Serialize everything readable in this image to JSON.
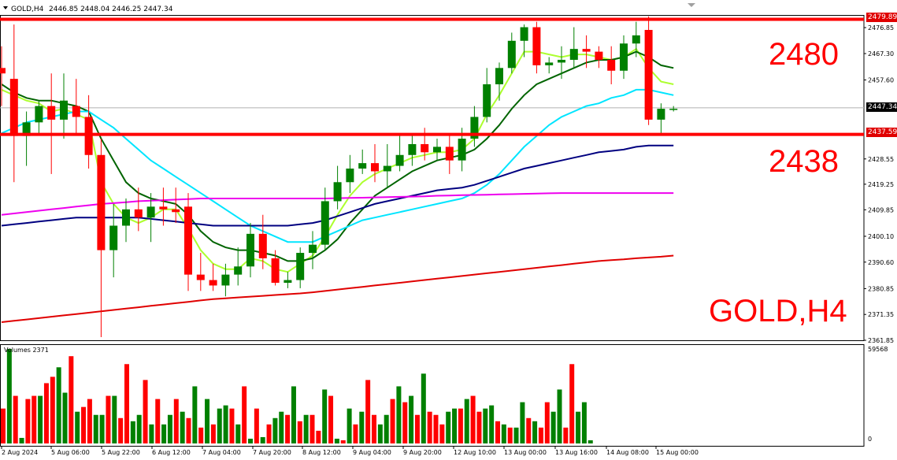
{
  "header": {
    "menu_arrow_icon": "triangle-down-icon",
    "symbol": "GOLD,H4",
    "ohlc": "2446.85 2448.04 2446.25 2447.34"
  },
  "volume_panel": {
    "label": "Volumes 2371",
    "max_label": "59568",
    "min_label": "0"
  },
  "annotations": {
    "level_high": "2480",
    "level_low": "2438",
    "symbol_tf": "GOLD,H4"
  },
  "price_tags": {
    "high": "2479.89",
    "current": "2447.34",
    "low": "2437.59"
  },
  "colors": {
    "bull": "#008000",
    "bear": "#ff0000",
    "ma_fast": "#adff2f",
    "ma_mid": "#006400",
    "ma_cyan": "#00e5ff",
    "ma_navy": "#000080",
    "ma_magenta": "#ee00ee",
    "ma_long": "#e00000",
    "level_line": "#ff0000"
  },
  "chart_data": {
    "type": "candlestick",
    "title": "GOLD,H4",
    "ylim": [
      2361.85,
      2481.5
    ],
    "y_ticks": [
      "2476.85",
      "2467.30",
      "2457.60",
      "2447.34",
      "2438.00",
      "2428.55",
      "2419.25",
      "2409.85",
      "2400.10",
      "2390.60",
      "2380.85",
      "2371.35",
      "2361.85"
    ],
    "x_tick_labels": [
      "2 Aug 2024",
      "5 Aug 06:00",
      "5 Aug 22:00",
      "6 Aug 12:00",
      "7 Aug 04:00",
      "7 Aug 20:00",
      "8 Aug 12:00",
      "9 Aug 04:00",
      "9 Aug 20:00",
      "12 Aug 10:00",
      "13 Aug 00:00",
      "13 Aug 16:00",
      "14 Aug 08:00",
      "15 Aug 00:00"
    ],
    "horizontal_levels": [
      2479.89,
      2437.59
    ],
    "current_price": 2447.34,
    "candles": [
      {
        "o": 2462,
        "h": 2470,
        "l": 2448,
        "c": 2460
      },
      {
        "o": 2458,
        "h": 2478,
        "l": 2420,
        "c": 2437
      },
      {
        "o": 2437,
        "h": 2446,
        "l": 2426,
        "c": 2442
      },
      {
        "o": 2442,
        "h": 2450,
        "l": 2438,
        "c": 2448
      },
      {
        "o": 2448,
        "h": 2460,
        "l": 2423,
        "c": 2443
      },
      {
        "o": 2443,
        "h": 2460,
        "l": 2436,
        "c": 2450
      },
      {
        "o": 2448,
        "h": 2458,
        "l": 2438,
        "c": 2444
      },
      {
        "o": 2444,
        "h": 2452,
        "l": 2425,
        "c": 2430
      },
      {
        "o": 2430,
        "h": 2436,
        "l": 2363,
        "c": 2395
      },
      {
        "o": 2395,
        "h": 2412,
        "l": 2385,
        "c": 2404
      },
      {
        "o": 2404,
        "h": 2414,
        "l": 2398,
        "c": 2410
      },
      {
        "o": 2410,
        "h": 2418,
        "l": 2402,
        "c": 2407
      },
      {
        "o": 2407,
        "h": 2416,
        "l": 2398,
        "c": 2411
      },
      {
        "o": 2411,
        "h": 2418,
        "l": 2404,
        "c": 2410
      },
      {
        "o": 2410,
        "h": 2418,
        "l": 2405,
        "c": 2409
      },
      {
        "o": 2411,
        "h": 2416,
        "l": 2380,
        "c": 2386
      },
      {
        "o": 2386,
        "h": 2394,
        "l": 2380,
        "c": 2384
      },
      {
        "o": 2384,
        "h": 2390,
        "l": 2380,
        "c": 2382
      },
      {
        "o": 2382,
        "h": 2390,
        "l": 2378,
        "c": 2386
      },
      {
        "o": 2386,
        "h": 2396,
        "l": 2382,
        "c": 2389
      },
      {
        "o": 2389,
        "h": 2405,
        "l": 2385,
        "c": 2401
      },
      {
        "o": 2401,
        "h": 2408,
        "l": 2388,
        "c": 2392
      },
      {
        "o": 2392,
        "h": 2395,
        "l": 2382,
        "c": 2383
      },
      {
        "o": 2383,
        "h": 2387,
        "l": 2381,
        "c": 2384
      },
      {
        "o": 2384,
        "h": 2396,
        "l": 2381,
        "c": 2394
      },
      {
        "o": 2394,
        "h": 2402,
        "l": 2388,
        "c": 2397
      },
      {
        "o": 2397,
        "h": 2418,
        "l": 2395,
        "c": 2413
      },
      {
        "o": 2413,
        "h": 2426,
        "l": 2410,
        "c": 2420
      },
      {
        "o": 2420,
        "h": 2430,
        "l": 2416,
        "c": 2425
      },
      {
        "o": 2425,
        "h": 2432,
        "l": 2423,
        "c": 2427
      },
      {
        "o": 2427,
        "h": 2434,
        "l": 2420,
        "c": 2424
      },
      {
        "o": 2424,
        "h": 2434,
        "l": 2418,
        "c": 2426
      },
      {
        "o": 2426,
        "h": 2438,
        "l": 2424,
        "c": 2430
      },
      {
        "o": 2430,
        "h": 2438,
        "l": 2426,
        "c": 2434
      },
      {
        "o": 2434,
        "h": 2440,
        "l": 2428,
        "c": 2431
      },
      {
        "o": 2431,
        "h": 2436,
        "l": 2428,
        "c": 2433
      },
      {
        "o": 2433,
        "h": 2438,
        "l": 2423,
        "c": 2428
      },
      {
        "o": 2428,
        "h": 2440,
        "l": 2424,
        "c": 2436
      },
      {
        "o": 2436,
        "h": 2448,
        "l": 2433,
        "c": 2444
      },
      {
        "o": 2444,
        "h": 2462,
        "l": 2442,
        "c": 2456
      },
      {
        "o": 2456,
        "h": 2464,
        "l": 2450,
        "c": 2462
      },
      {
        "o": 2462,
        "h": 2475,
        "l": 2460,
        "c": 2472
      },
      {
        "o": 2472,
        "h": 2478,
        "l": 2466,
        "c": 2477
      },
      {
        "o": 2477,
        "h": 2479,
        "l": 2460,
        "c": 2463
      },
      {
        "o": 2463,
        "h": 2466,
        "l": 2460,
        "c": 2464
      },
      {
        "o": 2464,
        "h": 2470,
        "l": 2458,
        "c": 2465
      },
      {
        "o": 2465,
        "h": 2477,
        "l": 2462,
        "c": 2469
      },
      {
        "o": 2469,
        "h": 2474,
        "l": 2462,
        "c": 2468
      },
      {
        "o": 2468,
        "h": 2470,
        "l": 2462,
        "c": 2465
      },
      {
        "o": 2465,
        "h": 2470,
        "l": 2456,
        "c": 2461
      },
      {
        "o": 2461,
        "h": 2474,
        "l": 2458,
        "c": 2471
      },
      {
        "o": 2471,
        "h": 2479,
        "l": 2466,
        "c": 2474
      },
      {
        "o": 2476,
        "h": 2481,
        "l": 2441,
        "c": 2443
      },
      {
        "o": 2443,
        "h": 2449,
        "l": 2438,
        "c": 2447
      },
      {
        "o": 2447,
        "h": 2448,
        "l": 2446,
        "c": 2447
      }
    ],
    "series": [
      {
        "name": "",
        "color_key": "ma_fast",
        "values": [
          2454,
          2452,
          2450,
          2449,
          2446,
          2447,
          2445,
          2443,
          2420,
          2412,
          2407,
          2405,
          2407,
          2410,
          2410,
          2403,
          2395,
          2390,
          2388,
          2388,
          2392,
          2391,
          2388,
          2387,
          2390,
          2393,
          2400,
          2408,
          2415,
          2420,
          2423,
          2425,
          2427,
          2429,
          2430,
          2431,
          2431,
          2432,
          2436,
          2445,
          2452,
          2460,
          2468,
          2468,
          2467,
          2466,
          2467,
          2467,
          2466,
          2465,
          2466,
          2469,
          2462,
          2457,
          2456
        ]
      },
      {
        "name": "",
        "color_key": "ma_mid",
        "values": [
          2456,
          2453,
          2451,
          2450,
          2450,
          2449,
          2448,
          2446,
          2436,
          2428,
          2420,
          2416,
          2414,
          2413,
          2412,
          2408,
          2402,
          2398,
          2396,
          2395,
          2395,
          2394,
          2393,
          2391,
          2391,
          2392,
          2395,
          2399,
          2405,
          2410,
          2415,
          2418,
          2421,
          2424,
          2426,
          2428,
          2429,
          2430,
          2432,
          2436,
          2441,
          2447,
          2452,
          2456,
          2458,
          2460,
          2462,
          2464,
          2465,
          2465,
          2466,
          2468,
          2466,
          2463,
          2462
        ]
      },
      {
        "name": "",
        "color_key": "ma_cyan",
        "values": [
          2438,
          2440,
          2442,
          2443,
          2444,
          2445,
          2446,
          2446,
          2443,
          2440,
          2436,
          2432,
          2428,
          2425,
          2422,
          2419,
          2416,
          2413,
          2410,
          2407,
          2404,
          2402,
          2400,
          2398,
          2398,
          2398,
          2400,
          2402,
          2404,
          2406,
          2407,
          2408,
          2409,
          2410,
          2411,
          2412,
          2413,
          2414,
          2416,
          2419,
          2423,
          2428,
          2433,
          2437,
          2441,
          2444,
          2446,
          2448,
          2449,
          2451,
          2452,
          2454,
          2454,
          2453,
          2452
        ]
      },
      {
        "name": "",
        "color_key": "ma_navy",
        "values": [
          2404,
          2404.5,
          2405,
          2405.5,
          2406,
          2406.5,
          2407,
          2407,
          2407,
          2407,
          2407,
          2407,
          2406.5,
          2406,
          2405.5,
          2405,
          2404.5,
          2404,
          2404,
          2404,
          2404,
          2404,
          2404,
          2404,
          2404.5,
          2405,
          2406,
          2407.5,
          2409,
          2410.5,
          2412,
          2413,
          2414,
          2415,
          2416,
          2417,
          2417.5,
          2418,
          2419,
          2420.5,
          2422,
          2423.5,
          2425,
          2426,
          2427,
          2428,
          2429,
          2430,
          2431,
          2431.5,
          2432,
          2433,
          2433.5,
          2433.5,
          2433.5
        ]
      },
      {
        "name": "",
        "color_key": "ma_magenta",
        "values": [
          2408,
          2408.5,
          2409,
          2409.5,
          2410,
          2410.5,
          2411,
          2411.5,
          2412,
          2412.3,
          2412.6,
          2413,
          2413.2,
          2413.4,
          2413.6,
          2413.8,
          2414,
          2414,
          2414,
          2414,
          2414,
          2414,
          2414,
          2414,
          2414,
          2414,
          2414,
          2414.1,
          2414.2,
          2414.3,
          2414.4,
          2414.5,
          2414.6,
          2414.7,
          2414.8,
          2415,
          2415.1,
          2415.2,
          2415.3,
          2415.4,
          2415.5,
          2415.6,
          2415.7,
          2415.8,
          2415.9,
          2416,
          2416,
          2416,
          2416,
          2416,
          2416,
          2416,
          2416,
          2416,
          2416
        ]
      },
      {
        "name": "",
        "color_key": "ma_long",
        "values": [
          2368.5,
          2369,
          2369.5,
          2370,
          2370.5,
          2371,
          2371.5,
          2372,
          2372.5,
          2373,
          2373.5,
          2374,
          2374.5,
          2375,
          2375.5,
          2376,
          2376.5,
          2377,
          2377.3,
          2377.6,
          2377.9,
          2378.2,
          2378.5,
          2378.8,
          2379.1,
          2379.5,
          2380,
          2380.5,
          2381,
          2381.5,
          2382,
          2382.5,
          2383,
          2383.5,
          2384,
          2384.5,
          2385,
          2385.5,
          2386,
          2386.5,
          2387,
          2387.5,
          2388,
          2388.5,
          2389,
          2389.5,
          2390,
          2390.5,
          2391,
          2391.3,
          2391.6,
          2392,
          2392.3,
          2392.6,
          2393
        ]
      }
    ],
    "volumes": [
      22000,
      59568,
      30000,
      3500,
      28000,
      30000,
      30000,
      38000,
      42000,
      48000,
      32000,
      55000,
      20000,
      23000,
      28000,
      18000,
      18000,
      30000,
      30000,
      16000,
      50000,
      14000,
      18000,
      40000,
      12000,
      28000,
      12000,
      18000,
      28000,
      20000,
      16000,
      36000,
      10000,
      28000,
      12000,
      22000,
      24000,
      22000,
      12000,
      36000,
      3000,
      22000,
      4000,
      12000,
      16000,
      20000,
      18000,
      36000,
      14000,
      18000,
      18000,
      8000,
      34000,
      30000,
      3000,
      2000,
      22000,
      12000,
      20000,
      40000,
      18000,
      12000,
      18000,
      28000,
      36000,
      26000,
      30000,
      18000,
      44000,
      20000,
      18000,
      12000,
      20000,
      22000,
      22000,
      28000,
      30000,
      20000,
      22000,
      24000,
      14000,
      12000,
      10000,
      10000,
      26000,
      16000,
      14000,
      10000,
      26000,
      20000,
      34000,
      10000,
      50000,
      20000,
      26000,
      2000
    ],
    "volume_bull": [
      false,
      true,
      false,
      true,
      false,
      false,
      true,
      false,
      false,
      true,
      true,
      false,
      true,
      false,
      false,
      true,
      true,
      false,
      true,
      false,
      false,
      true,
      true,
      false,
      true,
      false,
      true,
      true,
      false,
      true,
      false,
      true,
      false,
      true,
      false,
      true,
      true,
      false,
      true,
      false,
      true,
      false,
      true,
      false,
      true,
      true,
      false,
      true,
      false,
      true,
      false,
      false,
      true,
      false,
      true,
      false,
      true,
      false,
      true,
      false,
      false,
      true,
      true,
      false,
      true,
      false,
      true,
      false,
      true,
      false,
      false,
      false,
      true,
      true,
      false,
      true,
      false,
      false,
      true,
      true,
      false,
      true,
      false,
      true,
      true,
      false,
      true,
      false,
      false,
      true,
      true,
      false,
      false,
      true,
      true,
      true
    ]
  }
}
